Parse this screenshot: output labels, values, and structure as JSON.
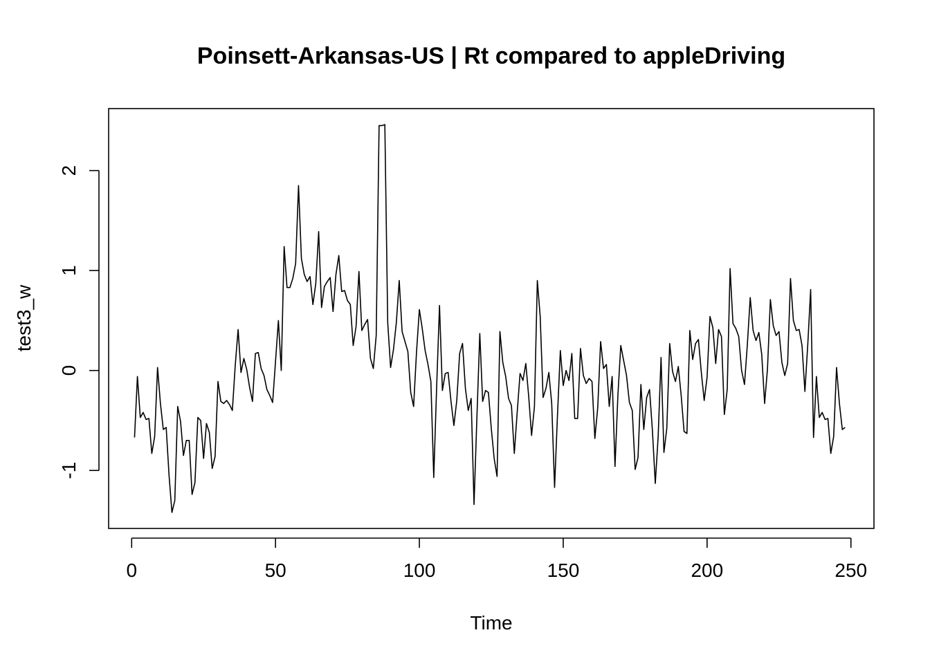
{
  "chart_data": {
    "type": "line",
    "title": "Poinsett-Arkansas-US | Rt compared to appleDriving",
    "xlabel": "Time",
    "ylabel": "test3_w",
    "xlim": [
      -8,
      258
    ],
    "ylim": [
      -1.58,
      2.62
    ],
    "x_ticks": [
      0,
      50,
      100,
      150,
      200,
      250
    ],
    "y_ticks": [
      -1,
      0,
      1,
      2
    ],
    "x_tick_labels": [
      "0",
      "50",
      "100",
      "150",
      "200",
      "250"
    ],
    "y_tick_labels": [
      "-1",
      "0",
      "1",
      "2"
    ],
    "line_color": "#000000",
    "series": [
      {
        "name": "test3_w",
        "x_start": 1,
        "values": [
          -0.67,
          -0.06,
          -0.47,
          -0.42,
          -0.49,
          -0.48,
          -0.83,
          -0.66,
          0.03,
          -0.33,
          -0.59,
          -0.57,
          -1.05,
          -1.42,
          -1.3,
          -0.36,
          -0.51,
          -0.85,
          -0.7,
          -0.7,
          -1.24,
          -1.12,
          -0.47,
          -0.5,
          -0.88,
          -0.53,
          -0.62,
          -0.98,
          -0.86,
          -0.11,
          -0.31,
          -0.33,
          -0.3,
          -0.34,
          -0.4,
          0.05,
          0.41,
          -0.02,
          0.12,
          0.01,
          -0.17,
          -0.31,
          0.17,
          0.18,
          0.02,
          -0.05,
          -0.19,
          -0.25,
          -0.32,
          0.09,
          0.5,
          0.0,
          1.24,
          0.83,
          0.83,
          0.92,
          1.07,
          1.85,
          1.12,
          0.96,
          0.89,
          0.94,
          0.66,
          0.87,
          1.39,
          0.63,
          0.84,
          0.89,
          0.93,
          0.59,
          0.96,
          1.15,
          0.79,
          0.8,
          0.7,
          0.66,
          0.25,
          0.44,
          0.99,
          0.4,
          0.46,
          0.51,
          0.12,
          0.02,
          0.35,
          2.45,
          2.45,
          2.46,
          0.48,
          0.03,
          0.21,
          0.48,
          0.9,
          0.39,
          0.29,
          0.19,
          -0.22,
          -0.36,
          0.18,
          0.61,
          0.42,
          0.2,
          0.06,
          -0.11,
          -1.07,
          -0.17,
          0.65,
          -0.2,
          -0.03,
          -0.02,
          -0.31,
          -0.55,
          -0.3,
          0.17,
          0.27,
          -0.18,
          -0.4,
          -0.28,
          -1.34,
          -0.47,
          0.37,
          -0.31,
          -0.2,
          -0.22,
          -0.58,
          -0.88,
          -1.06,
          0.39,
          0.08,
          -0.06,
          -0.28,
          -0.35,
          -0.83,
          -0.42,
          -0.03,
          -0.1,
          0.07,
          -0.26,
          -0.65,
          -0.36,
          0.9,
          0.54,
          -0.27,
          -0.18,
          -0.02,
          -0.33,
          -1.17,
          -0.45,
          0.2,
          -0.15,
          0.0,
          -0.1,
          0.17,
          -0.48,
          -0.48,
          0.22,
          -0.05,
          -0.13,
          -0.08,
          -0.11,
          -0.68,
          -0.37,
          0.29,
          0.02,
          0.06,
          -0.36,
          -0.06,
          -0.96,
          -0.25,
          0.25,
          0.1,
          -0.05,
          -0.32,
          -0.4,
          -0.99,
          -0.87,
          -0.14,
          -0.59,
          -0.27,
          -0.19,
          -0.6,
          -1.13,
          -0.66,
          0.13,
          -0.82,
          -0.58,
          0.27,
          -0.01,
          -0.11,
          0.04,
          -0.25,
          -0.61,
          -0.63,
          0.4,
          0.11,
          0.27,
          0.31,
          -0.02,
          -0.3,
          -0.07,
          0.54,
          0.43,
          0.07,
          0.41,
          0.34,
          -0.44,
          -0.19,
          1.02,
          0.47,
          0.42,
          0.34,
          0.0,
          -0.14,
          0.26,
          0.73,
          0.4,
          0.3,
          0.38,
          0.16,
          -0.33,
          0.02,
          0.71,
          0.45,
          0.35,
          0.39,
          0.08,
          -0.05,
          0.07,
          0.92,
          0.5,
          0.4,
          0.41,
          0.25,
          -0.21,
          0.26,
          0.81,
          -0.67,
          -0.06,
          -0.47,
          -0.42,
          -0.49,
          -0.48,
          -0.83,
          -0.66,
          0.03,
          -0.33,
          -0.59,
          -0.57
        ]
      }
    ]
  }
}
